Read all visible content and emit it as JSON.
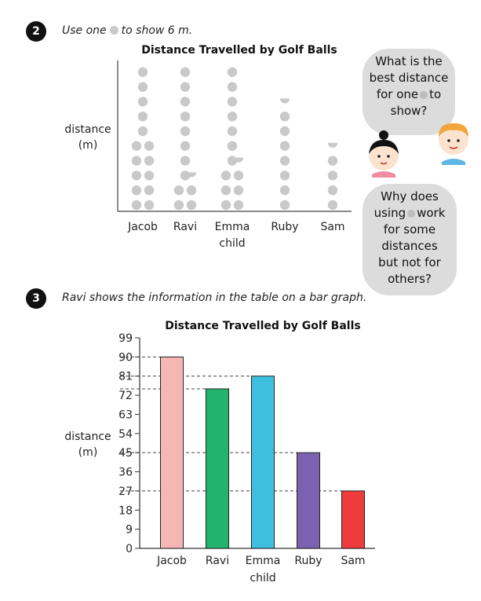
{
  "q2": {
    "number": "2",
    "instruction_before": "Use one",
    "instruction_after": "to show 6 m."
  },
  "q3": {
    "number": "3",
    "instruction": "Ravi shows the information in the table on a bar graph."
  },
  "bubble1": {
    "line1": "What is the",
    "line2": "best distance",
    "line3_before": "for one",
    "line3_after": "to",
    "line4": "show?"
  },
  "bubble2": {
    "line1": "Why does",
    "line2_before": "using",
    "line2_after": "work",
    "line3": "for some",
    "line4": "distances",
    "line5": "but not for",
    "line6": "others?"
  },
  "colors": {
    "dot": "#c9c9c9",
    "bar_jacob": "#f7b6b6",
    "bar_ravi": "#22b46e",
    "bar_emma": "#3fbfdf",
    "bar_ruby": "#7b62b0",
    "bar_sam": "#ee3b3b",
    "bubble": "#dcdcdc"
  },
  "chart_data": [
    {
      "type": "pictograph",
      "title": "Distance Travelled by Golf Balls",
      "xlabel": "child",
      "ylabel": "distance\n(m)",
      "unit_per_symbol": 6,
      "categories": [
        "Jacob",
        "Ravi",
        "Emma",
        "Ruby",
        "Sam"
      ],
      "values": [
        90,
        75,
        81,
        45,
        27
      ],
      "symbol_counts": [
        15,
        12.5,
        13.5,
        7.5,
        4.5
      ]
    },
    {
      "type": "bar",
      "title": "Distance Travelled by Golf Balls",
      "xlabel": "child",
      "ylabel": "distance\n(m)",
      "categories": [
        "Jacob",
        "Ravi",
        "Emma",
        "Ruby",
        "Sam"
      ],
      "values": [
        90,
        75,
        81,
        45,
        27
      ],
      "ylim": [
        0,
        99
      ],
      "yticks": [
        0,
        9,
        18,
        27,
        36,
        45,
        54,
        63,
        72,
        81,
        90,
        99
      ],
      "grid": false,
      "reference_lines": [
        90,
        81,
        75,
        45,
        27
      ]
    }
  ]
}
